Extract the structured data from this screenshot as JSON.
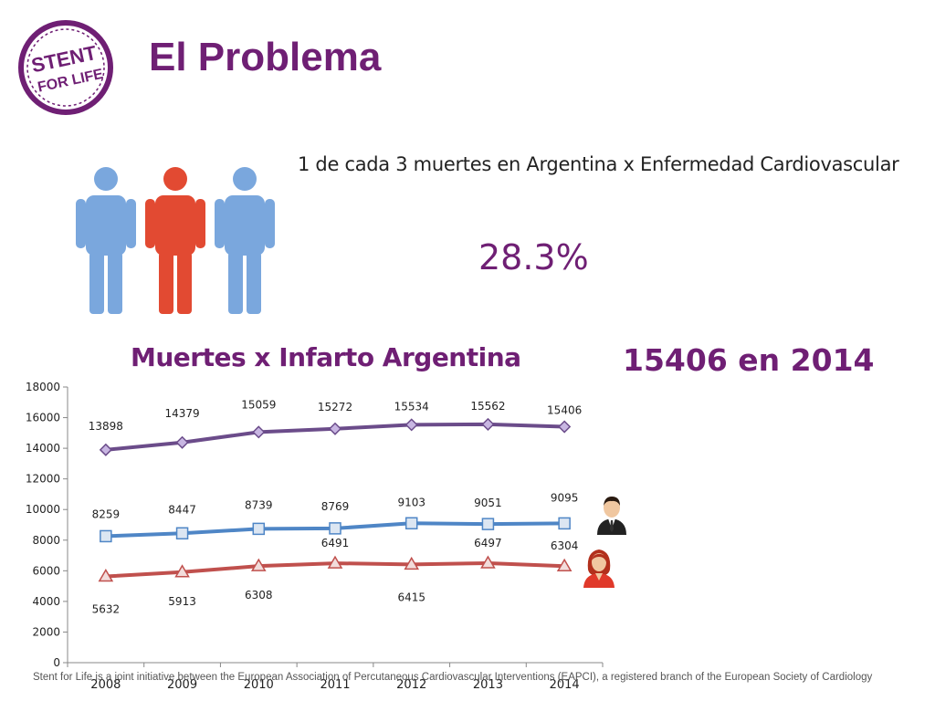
{
  "header": {
    "title": "El Problema",
    "logo_lines": [
      "STENT",
      "FOR LIFE"
    ]
  },
  "stats": {
    "ratio_text": "1 de cada 3 muertes en Argentina x Enfermedad Cardiovascular",
    "percentage": "28.3%",
    "headline": "15406 en 2014"
  },
  "colors": {
    "brand": "#6f1f74",
    "total_series": "#6b4c8a",
    "men_series": "#4f86c6",
    "women_series": "#c0504d",
    "figure_blue": "#7aa7dd",
    "figure_red": "#e24a32"
  },
  "chart_data": {
    "type": "line",
    "title": "Muertes x Infarto Argentina",
    "categories": [
      "2008",
      "2009",
      "2010",
      "2011",
      "2012",
      "2013",
      "2014"
    ],
    "ylim": [
      0,
      18000
    ],
    "yticks": [
      "0",
      "2000",
      "4000",
      "6000",
      "8000",
      "10000",
      "12000",
      "14000",
      "16000",
      "18000"
    ],
    "grid": false,
    "series": [
      {
        "values": [
          13898,
          14379,
          15059,
          15272,
          15534,
          15562,
          15406
        ],
        "marker": "diamond"
      },
      {
        "values": [
          8259,
          8447,
          8739,
          8769,
          9103,
          9051,
          9095
        ],
        "marker": "square"
      },
      {
        "values": [
          5632,
          5913,
          6308,
          6491,
          6415,
          6497,
          6304
        ],
        "marker": "triangle"
      }
    ]
  },
  "footer": {
    "text": "Stent for Life is a joint initiative between the European Association of Percutaneous Cardiovascular Interventions (EAPCI), a registered branch of the European Society of Cardiology (ESC), and EuroPCR"
  }
}
